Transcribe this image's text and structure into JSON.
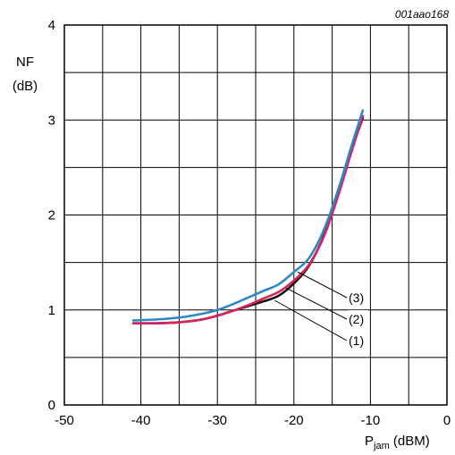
{
  "figure_id": "001aao168",
  "chart_data": {
    "type": "line",
    "ylabel_line1": "NF",
    "ylabel_line2": "(dB)",
    "xlabel_main": "P",
    "xlabel_sub": "jam",
    "xlabel_unit": " (dBM)",
    "xlim": [
      -50,
      0
    ],
    "ylim": [
      0,
      4
    ],
    "x_ticks": [
      -50,
      -40,
      -30,
      -20,
      -10,
      0
    ],
    "x_tick_labels": [
      "-50",
      "-40",
      "-30",
      "-20",
      "-10",
      "0"
    ],
    "y_ticks": [
      0,
      1,
      2,
      3,
      4
    ],
    "y_tick_labels": [
      "0",
      "1",
      "2",
      "3",
      "4"
    ],
    "grid": true,
    "series": [
      {
        "name": "(1)",
        "color": "#111111",
        "x": [
          -41,
          -38,
          -35,
          -32,
          -30,
          -28,
          -26,
          -24,
          -22,
          -20,
          -18,
          -16,
          -14,
          -12.5,
          -11
        ],
        "y": [
          0.86,
          0.86,
          0.87,
          0.9,
          0.94,
          0.99,
          1.04,
          1.09,
          1.15,
          1.28,
          1.47,
          1.8,
          2.28,
          2.68,
          3.02
        ]
      },
      {
        "name": "(2)",
        "color": "#d6245a",
        "x": [
          -41,
          -38,
          -35,
          -32,
          -30,
          -28,
          -26,
          -24,
          -22,
          -20,
          -18,
          -16,
          -14,
          -12.5,
          -11
        ],
        "y": [
          0.86,
          0.86,
          0.87,
          0.9,
          0.94,
          0.99,
          1.05,
          1.12,
          1.19,
          1.31,
          1.48,
          1.79,
          2.26,
          2.66,
          3.04
        ]
      },
      {
        "name": "(3)",
        "color": "#2f87c6",
        "x": [
          -41,
          -38,
          -35,
          -32,
          -30,
          -28,
          -26,
          -24,
          -22,
          -20,
          -18,
          -16,
          -14,
          -12.5,
          -11
        ],
        "y": [
          0.89,
          0.9,
          0.92,
          0.96,
          1.0,
          1.06,
          1.13,
          1.2,
          1.27,
          1.4,
          1.55,
          1.86,
          2.32,
          2.72,
          3.1
        ]
      }
    ],
    "callouts": [
      {
        "label": "(3)",
        "series": 2,
        "x": -19.5,
        "y": 1.4
      },
      {
        "label": "(2)",
        "series": 1,
        "x": -21,
        "y": 1.23
      },
      {
        "label": "(1)",
        "series": 0,
        "x": -22.5,
        "y": 1.1
      }
    ]
  }
}
